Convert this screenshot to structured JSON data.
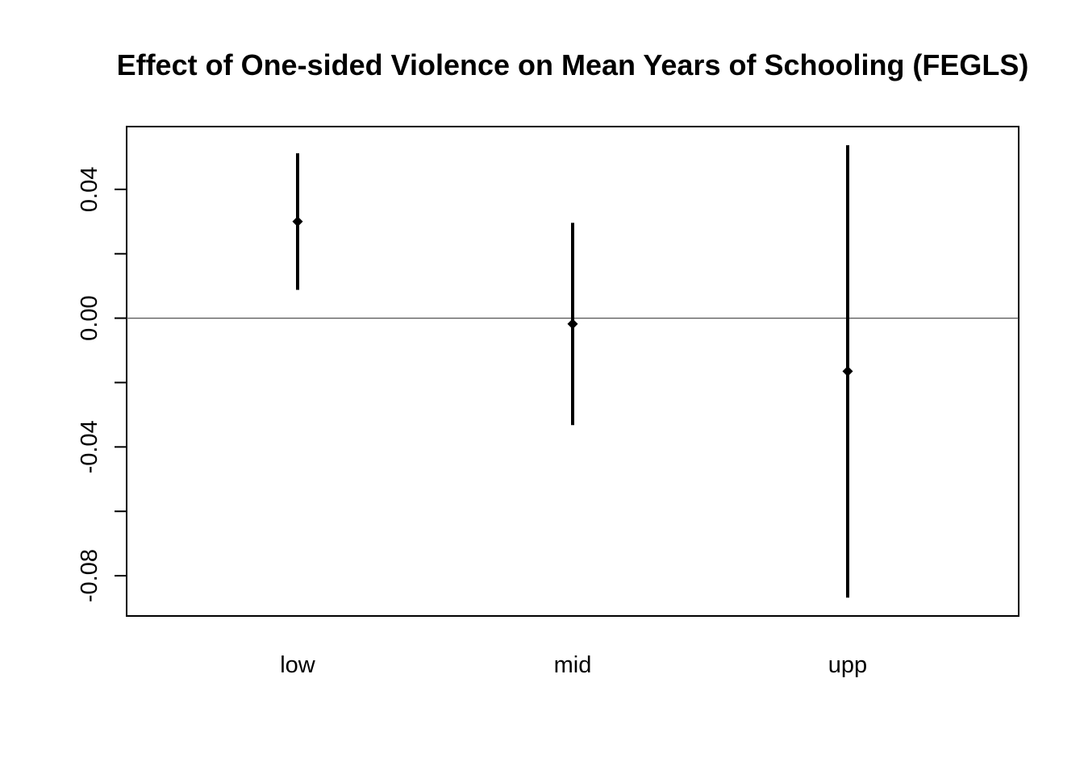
{
  "chart_data": {
    "type": "errorbar",
    "title": "Effect of One-sided Violence on Mean Years of Schooling (FEGLS)",
    "xlabel": "",
    "ylabel": "",
    "categories": [
      "low",
      "mid",
      "upp"
    ],
    "estimates": [
      0.03,
      -0.0018,
      -0.0165
    ],
    "lower": [
      0.0088,
      -0.0332,
      -0.0868
    ],
    "upper": [
      0.0512,
      0.0296,
      0.0537
    ],
    "ylim": [
      -0.0925,
      0.0595
    ],
    "y_ticks": [
      -0.08,
      -0.06,
      -0.04,
      -0.02,
      0.0,
      0.02,
      0.04
    ],
    "y_tick_labels": [
      "-0.08",
      "",
      "-0.04",
      "",
      "0.00",
      "",
      "0.04"
    ],
    "reference_line": 0,
    "grid": false,
    "legend": "none",
    "colors": {
      "marks": "#000000",
      "reference_line": "#555555",
      "background": "#ffffff"
    }
  }
}
